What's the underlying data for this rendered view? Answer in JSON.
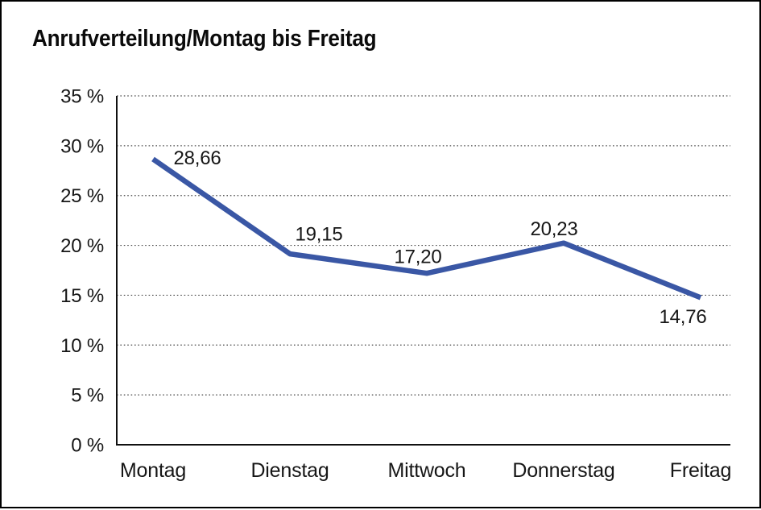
{
  "title": "Anrufverteilung/Montag bis Freitag",
  "chart_data": {
    "type": "line",
    "title": "Anrufverteilung/Montag bis Freitag",
    "categories": [
      "Montag",
      "Dienstag",
      "Mittwoch",
      "Donnerstag",
      "Freitag"
    ],
    "series": [
      {
        "name": "Anrufverteilung",
        "values": [
          28.66,
          19.15,
          17.2,
          20.23,
          14.76
        ]
      }
    ],
    "value_labels": [
      "28,66",
      "19,15",
      "17,20",
      "20,23",
      "14,76"
    ],
    "xlabel": "",
    "ylabel": "",
    "ylim": [
      0,
      35
    ],
    "ytick_step": 5,
    "ytick_labels": [
      "0 %",
      "5 %",
      "10 %",
      "15 %",
      "20 %",
      "25 %",
      "30 %",
      "35 %"
    ],
    "grid": "horizontal-dotted",
    "legend": "none",
    "unit": "%"
  },
  "colors": {
    "line": "#3A57A5",
    "axis": "#111111",
    "grid": "#4a4a4a",
    "text": "#161616",
    "background": "#ffffff",
    "frame_border": "#000000"
  }
}
